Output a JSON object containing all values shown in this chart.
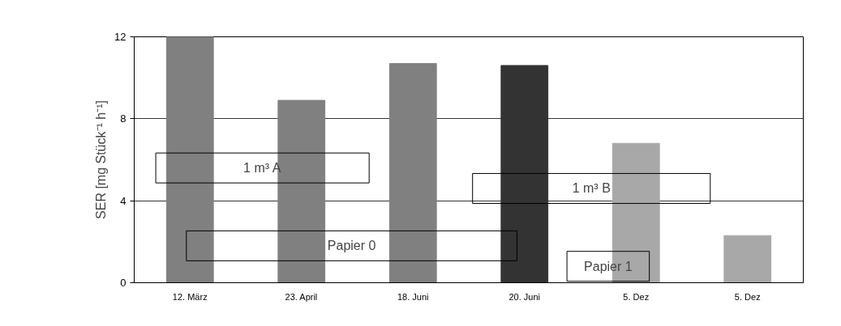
{
  "chart_data": {
    "type": "bar",
    "ylabel": "SER [mg Stück⁻¹ h⁻¹]",
    "categories": [
      "12. März",
      "23. April",
      "18. Juni",
      "20. Juni",
      "5. Dez",
      "5. Dez"
    ],
    "values": [
      12,
      8.9,
      10.7,
      10.6,
      6.8,
      2.3
    ],
    "colors": [
      "#808080",
      "#808080",
      "#808080",
      "#333333",
      "#a8a8a8",
      "#a8a8a8"
    ],
    "ylim": [
      0,
      12
    ],
    "yticks": [
      0,
      4,
      8,
      12
    ],
    "grid": "y",
    "annotations": [
      "1 m³ A",
      "1 m³ B",
      "Papier 0",
      "Papier 1"
    ]
  }
}
